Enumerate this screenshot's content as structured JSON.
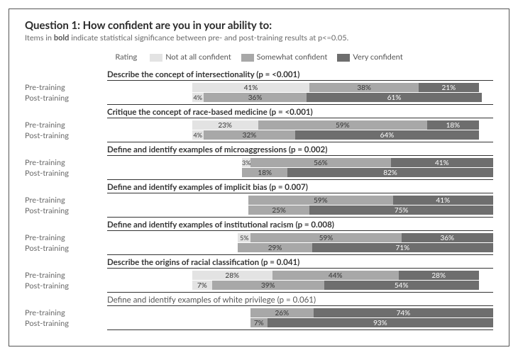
{
  "title": "Question 1: How confident are you in your ability to:",
  "subtitle_pre": "Items in ",
  "subtitle_bold": "bold",
  "subtitle_post": " indicate statistical significance between pre- and post-training results at p<=0.05.",
  "legend": {
    "label": "Rating",
    "cats": [
      {
        "name": "Not at all confident",
        "color": "#e3e3e3"
      },
      {
        "name": "Somewhat confident",
        "color": "#a8a8a8"
      },
      {
        "name": "Very confident",
        "color": "#6e6e6e"
      }
    ]
  },
  "rowlabels": {
    "pre": "Pre-training",
    "post": "Post-training"
  },
  "colors": {
    "c1": "#e3e3e3",
    "c2": "#a8a8a8",
    "c3": "#6e6e6e",
    "textOnDark": "#fff"
  },
  "plotArea": {
    "leftPadPct": 22,
    "maxTotal": 105
  },
  "items": [
    {
      "label": "Describe the concept of intersectionality (p = <0.001)",
      "bold": true,
      "pre": [
        41,
        38,
        21
      ],
      "post": [
        4,
        36,
        61
      ],
      "preOffset": 0,
      "postOffset": 0
    },
    {
      "label": "Critique the concept of race-based medicine (p = <0.001)",
      "bold": true,
      "pre": [
        23,
        59,
        18
      ],
      "post": [
        4,
        32,
        64
      ],
      "preOffset": 0,
      "postOffset": 0
    },
    {
      "label": "Define and identify examples of microaggressions (p = 0.002)",
      "bold": true,
      "pre": [
        3,
        56,
        41
      ],
      "post": [
        0,
        18,
        82
      ],
      "preOffset": 20,
      "postOffset": 20
    },
    {
      "label": "Define and identify examples of implicit bias (p = 0.007)",
      "bold": true,
      "pre": [
        0,
        59,
        41
      ],
      "post": [
        0,
        25,
        75
      ],
      "preOffset": 23,
      "postOffset": 23
    },
    {
      "label": "Define and identify examples of institutional racism (p = 0.008)",
      "bold": true,
      "pre": [
        5,
        59,
        36
      ],
      "post": [
        0,
        29,
        71
      ],
      "preOffset": 18,
      "postOffset": 18
    },
    {
      "label": "Describe the origins of racial classification (p = 0.041)",
      "bold": true,
      "pre": [
        28,
        44,
        28
      ],
      "post": [
        7,
        39,
        54
      ],
      "preOffset": 0,
      "postOffset": 0
    },
    {
      "label": "Define and identify examples of white privilege (p = 0.061)",
      "bold": false,
      "pre": [
        0,
        26,
        74
      ],
      "post": [
        0,
        7,
        93
      ],
      "preOffset": 24,
      "postOffset": 24
    }
  ]
}
